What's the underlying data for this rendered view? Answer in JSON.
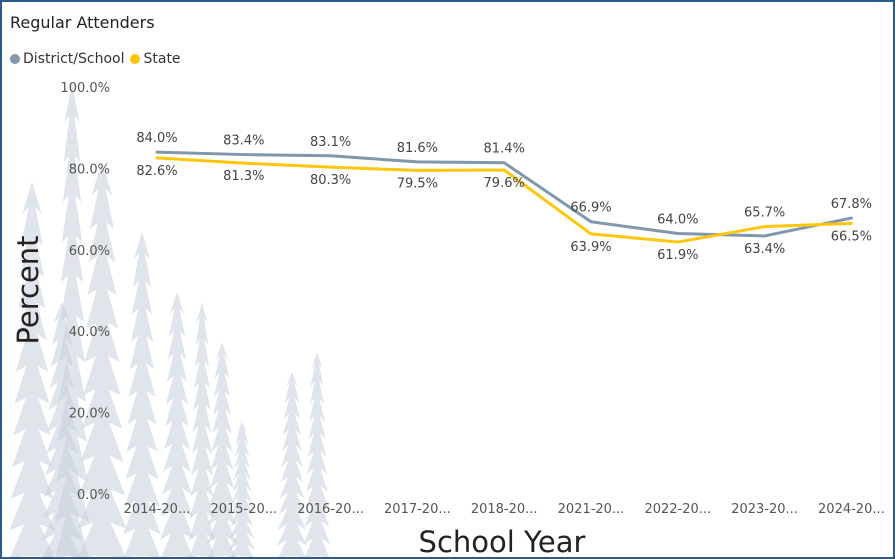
{
  "title": "Regular Attenders",
  "colors": {
    "border": "#2a5b8c",
    "district": "#8197ab",
    "state": "#ffc60a",
    "trees": "#c7d0da"
  },
  "chart_data": {
    "type": "line",
    "title": "Regular Attenders",
    "xlabel": "School Year",
    "ylabel": "Percent",
    "categories": [
      "2014-20...",
      "2015-20...",
      "2016-20...",
      "2017-20...",
      "2018-20...",
      "2021-20...",
      "2022-20...",
      "2023-20...",
      "2024-20..."
    ],
    "ylim": [
      0,
      100
    ],
    "yticks": [
      "0.0%",
      "20.0%",
      "40.0%",
      "60.0%",
      "80.0%",
      "100.0%"
    ],
    "grid": false,
    "legend_position": "top-left",
    "series": [
      {
        "name": "District/School",
        "values": [
          84.0,
          83.4,
          83.1,
          81.6,
          81.4,
          66.9,
          64.0,
          63.4,
          67.8
        ],
        "labels": [
          "84.0%",
          "83.4%",
          "83.1%",
          "81.6%",
          "81.4%",
          "66.9%",
          "64.0%",
          "63.4%",
          "67.8%"
        ]
      },
      {
        "name": "State",
        "values": [
          82.6,
          81.3,
          80.3,
          79.5,
          79.6,
          63.9,
          61.9,
          65.7,
          66.5
        ],
        "labels": [
          "82.6%",
          "81.3%",
          "80.3%",
          "79.5%",
          "79.6%",
          "63.9%",
          "61.9%",
          "65.7%",
          "66.5%"
        ]
      }
    ]
  }
}
